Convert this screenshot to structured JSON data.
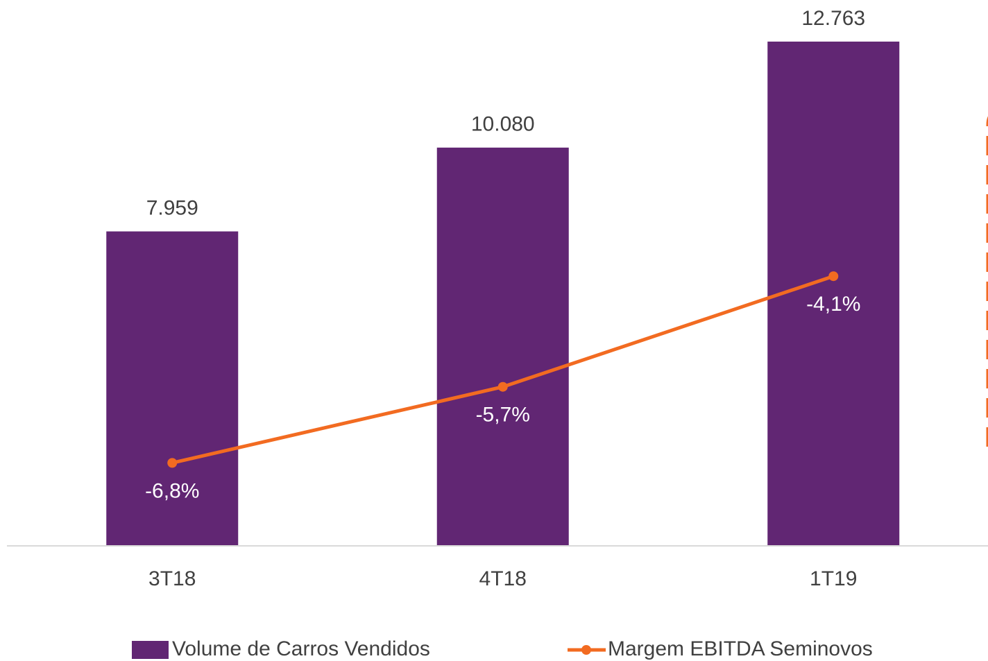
{
  "chart_data": {
    "type": "bar-line",
    "categories": [
      "3T18",
      "4T18",
      "1T19"
    ],
    "series": [
      {
        "name": "Volume de Carros Vendidos",
        "type": "bar",
        "color": "#612673",
        "values": [
          7959,
          10080,
          12763
        ],
        "value_labels": [
          "7.959",
          "10.080",
          "12.763"
        ]
      },
      {
        "name": "Margem EBITDA Seminovos",
        "type": "line",
        "axis": "y2",
        "color": "#f26b21",
        "values": [
          -6.8,
          -5.7,
          -4.1
        ],
        "value_labels": [
          "-6,8%",
          "-5,7%",
          "-4,1%"
        ]
      }
    ],
    "ylim": [
      0,
      14000
    ],
    "y2lim": [
      -8,
      0
    ],
    "legend": "bottom"
  }
}
